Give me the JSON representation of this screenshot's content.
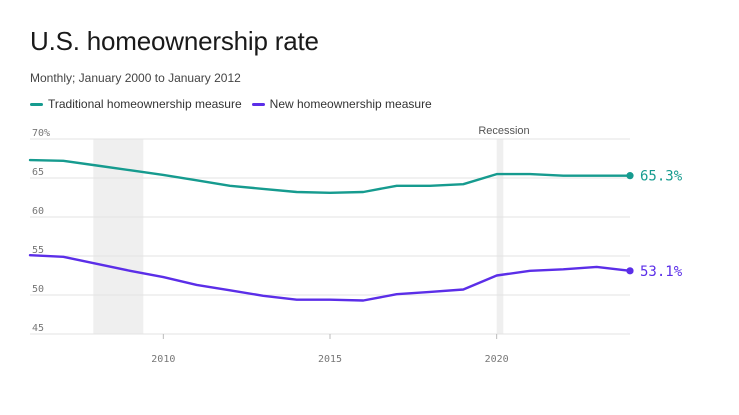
{
  "title": "U.S. homeownership rate",
  "subtitle": "Monthly; January 2000 to January 2012",
  "colors": {
    "traditional": "#169b8f",
    "new": "#5b2ee8",
    "shade": "#efefef",
    "grid": "#e3e3e3"
  },
  "chart_data": {
    "type": "line",
    "title": "U.S. homeownership rate",
    "subtitle": "Monthly; January 2000 to January 2012",
    "xlim": [
      2006,
      2024
    ],
    "ylim": [
      45,
      70
    ],
    "x_ticks": [
      2010,
      2015,
      2020
    ],
    "y_ticks": [
      {
        "value": 45,
        "label": "45"
      },
      {
        "value": 50,
        "label": "50"
      },
      {
        "value": 55,
        "label": "55"
      },
      {
        "value": 60,
        "label": "60"
      },
      {
        "value": 65,
        "label": "65"
      },
      {
        "value": 70,
        "label": "70%"
      }
    ],
    "grid": true,
    "legend": "top-left",
    "shaded_periods": [
      {
        "start": 2007.9,
        "end": 2009.4,
        "label": ""
      },
      {
        "start": 2020.0,
        "end": 2020.2,
        "label": "Recession"
      }
    ],
    "series": [
      {
        "name": "Traditional homeownership measure",
        "key": "traditional",
        "end_label": "65.3%",
        "x": [
          2006,
          2007,
          2008,
          2009,
          2010,
          2011,
          2012,
          2013,
          2014,
          2015,
          2016,
          2017,
          2018,
          2019,
          2020,
          2021,
          2022,
          2023,
          2024
        ],
        "values": [
          67.3,
          67.2,
          66.6,
          66.0,
          65.4,
          64.7,
          64.0,
          63.6,
          63.2,
          63.1,
          63.2,
          64.0,
          64.0,
          64.2,
          65.5,
          65.5,
          65.3,
          65.3,
          65.3
        ]
      },
      {
        "name": "New homeownership measure",
        "key": "new",
        "end_label": "53.1%",
        "x": [
          2006,
          2007,
          2008,
          2009,
          2010,
          2011,
          2012,
          2013,
          2014,
          2015,
          2016,
          2017,
          2018,
          2019,
          2020,
          2021,
          2022,
          2023,
          2024
        ],
        "values": [
          55.1,
          54.9,
          54.0,
          53.1,
          52.3,
          51.3,
          50.6,
          49.9,
          49.4,
          49.4,
          49.3,
          50.1,
          50.4,
          50.7,
          52.5,
          53.1,
          53.3,
          53.6,
          53.1
        ]
      }
    ]
  }
}
